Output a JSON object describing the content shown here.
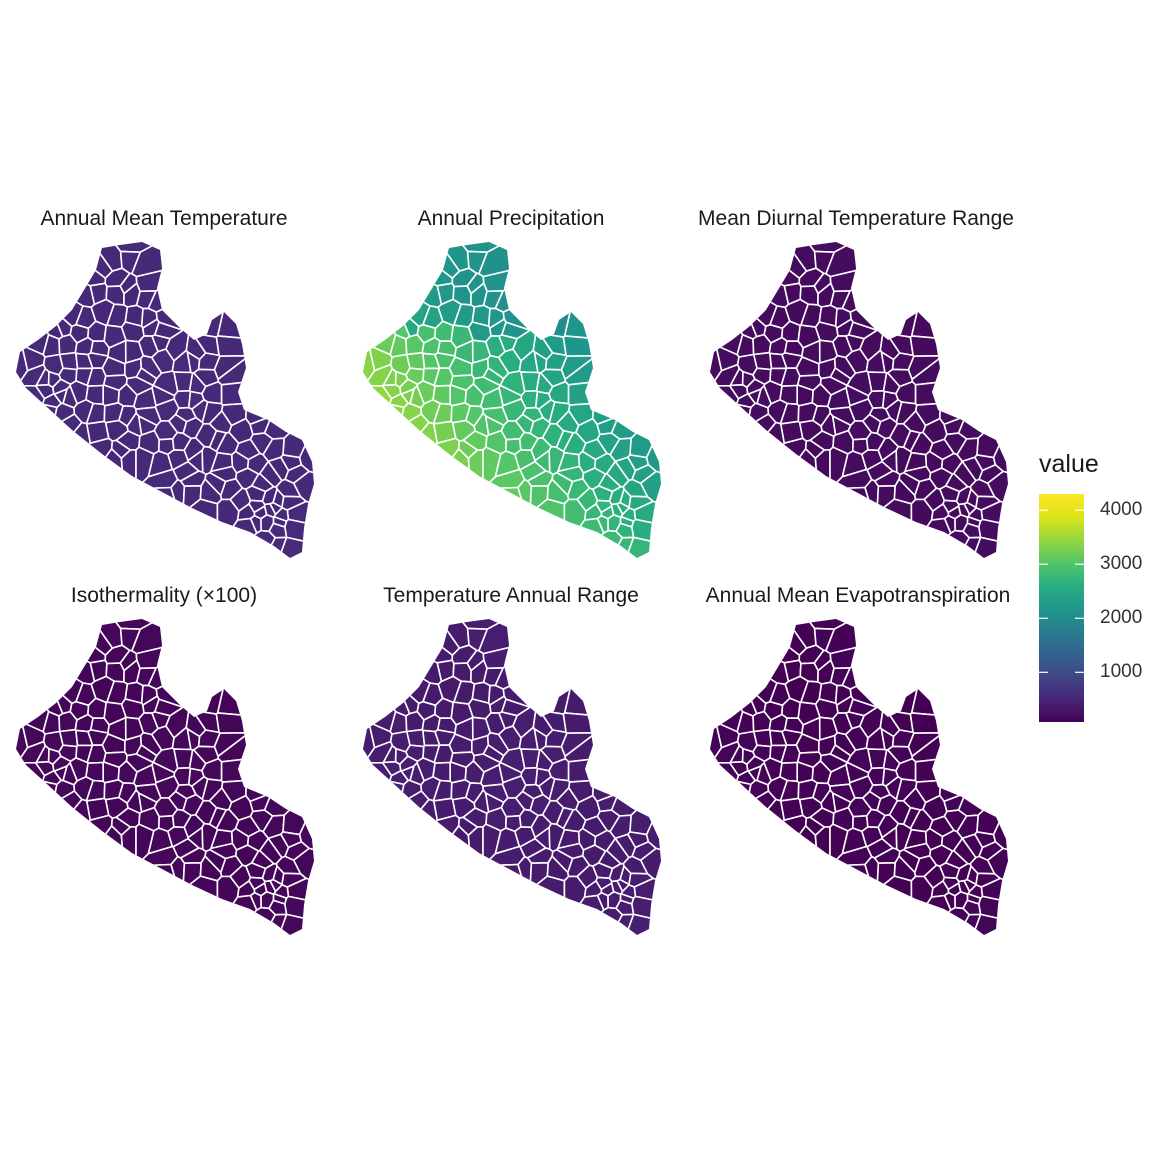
{
  "figure": {
    "legend": {
      "title": "value",
      "min": 80,
      "max": 4300,
      "ticks": [
        {
          "value": 1000,
          "label": "1000"
        },
        {
          "value": 2000,
          "label": "2000"
        },
        {
          "value": 3000,
          "label": "3000"
        },
        {
          "value": 4000,
          "label": "4000"
        }
      ],
      "colors": [
        "#440154",
        "#482677",
        "#404688",
        "#33638d",
        "#287d8e",
        "#1f968b",
        "#29af7f",
        "#55c667",
        "#95d840",
        "#dce319",
        "#fde725"
      ]
    },
    "panels": [
      {
        "title": "Annual Mean Temperature",
        "low": 520,
        "high": 560,
        "gradient": "none"
      },
      {
        "title": "Annual Precipitation",
        "low": 1900,
        "high": 4100,
        "gradient": "coastal"
      },
      {
        "title": "Mean Diurnal Temperature Range",
        "low": 180,
        "high": 220,
        "gradient": "none"
      },
      {
        "title": "Isothermality (×100)",
        "low": 130,
        "high": 160,
        "gradient": "none"
      },
      {
        "title": "Temperature Annual Range",
        "low": 360,
        "high": 420,
        "gradient": "none"
      },
      {
        "title": "Annual Mean Evapotranspiration",
        "low": 80,
        "high": 120,
        "gradient": "none"
      }
    ]
  }
}
